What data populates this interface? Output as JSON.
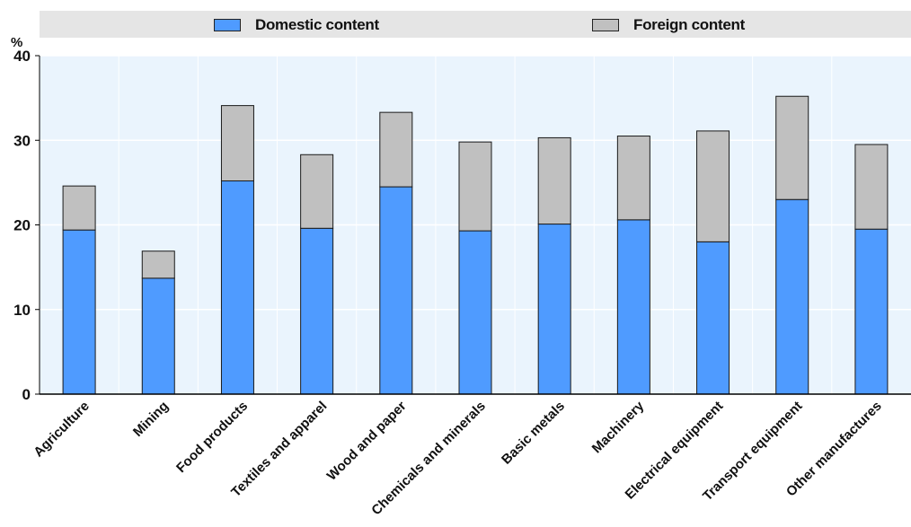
{
  "chart_data": {
    "type": "bar",
    "stacked": true,
    "ylabel": "%",
    "ylim": [
      0,
      40
    ],
    "yticks": [
      0,
      10,
      20,
      30,
      40
    ],
    "categories": [
      "Agriculture",
      "Mining",
      "Food products",
      "Textiles and apparel",
      "Wood and paper",
      "Chemicals and minerals",
      "Basic metals",
      "Machinery",
      "Electrical equipment",
      "Transport equipment",
      "Other manufactures"
    ],
    "series": [
      {
        "name": "Domestic content",
        "color": "#4f9bff",
        "values": [
          19.4,
          13.7,
          25.2,
          19.6,
          24.5,
          19.3,
          20.1,
          20.6,
          18.0,
          23.0,
          19.5
        ]
      },
      {
        "name": "Foreign content",
        "color": "#c0c0c0",
        "values": [
          5.2,
          3.2,
          8.9,
          8.7,
          8.8,
          10.5,
          10.2,
          9.9,
          13.1,
          12.2,
          10.0
        ]
      }
    ],
    "legend_position": "top",
    "grid": true
  }
}
